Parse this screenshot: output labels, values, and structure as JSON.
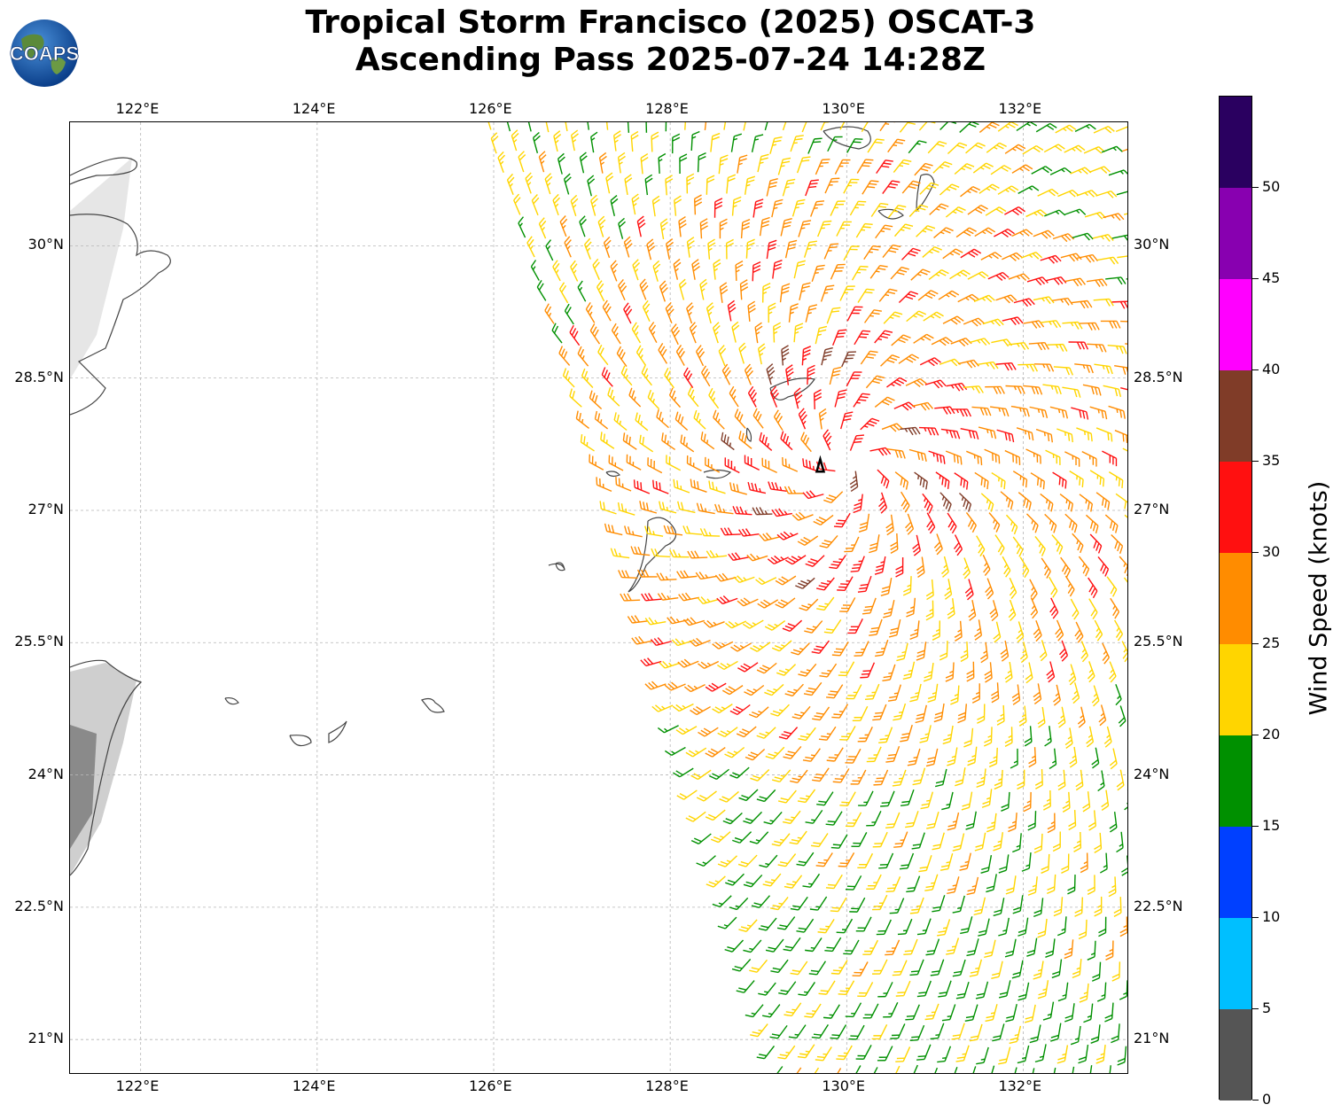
{
  "header": {
    "title_line1": "Tropical Storm Francisco (2025) OSCAT-3",
    "title_line2": "Ascending Pass 2025-07-24 14:28Z",
    "logo_text": "COAPS"
  },
  "map": {
    "lon_labels": [
      "122°E",
      "124°E",
      "126°E",
      "128°E",
      "130°E",
      "132°E"
    ],
    "lat_labels": [
      "30°N",
      "28.5°N",
      "27°N",
      "25.5°N",
      "24°N",
      "22.5°N",
      "21°N"
    ],
    "lon_range": [
      121.2,
      133.2
    ],
    "lat_range": [
      20.6,
      31.4
    ],
    "gridlines": true,
    "storm_center": {
      "lon": 129.7,
      "lat": 27.5,
      "symbol": "tropical-storm-icon"
    }
  },
  "colorbar": {
    "label": "Wind Speed (knots)",
    "tick_labels": [
      "0",
      "5",
      "10",
      "15",
      "20",
      "25",
      "30",
      "35",
      "40",
      "45",
      "50"
    ],
    "bins": [
      {
        "min": 0,
        "max": 5,
        "color": "#555555"
      },
      {
        "min": 5,
        "max": 10,
        "color": "#00bfff"
      },
      {
        "min": 10,
        "max": 15,
        "color": "#0040ff"
      },
      {
        "min": 15,
        "max": 20,
        "color": "#009000"
      },
      {
        "min": 20,
        "max": 25,
        "color": "#ffd500"
      },
      {
        "min": 25,
        "max": 30,
        "color": "#ff8c00"
      },
      {
        "min": 30,
        "max": 35,
        "color": "#ff1010"
      },
      {
        "min": 35,
        "max": 40,
        "color": "#803c28"
      },
      {
        "min": 40,
        "max": 45,
        "color": "#ff00ff"
      },
      {
        "min": 45,
        "max": 50,
        "color": "#8800b0"
      },
      {
        "min": 50,
        "max": 55,
        "color": "#2a0060"
      }
    ]
  }
}
